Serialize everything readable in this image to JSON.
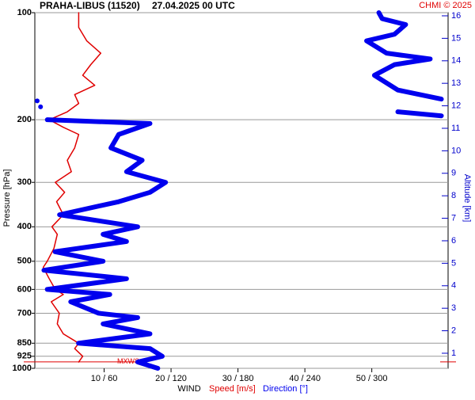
{
  "chart_data": {
    "type": "wind-profile",
    "title": "PRAHA-LIBUS (11520)",
    "subtitle": "27.04.2025 00 UTC",
    "credit": "CHMI © 2025",
    "ylabel": "Pressure [hPa]",
    "y2label": "Altitude [km]",
    "xlabel": "WIND",
    "y_log": true,
    "grid": true,
    "ylim": [
      1000,
      100
    ],
    "yticks": [
      100,
      200,
      300,
      400,
      500,
      600,
      700,
      850,
      925,
      1000
    ],
    "y2lim": [
      0.33,
      16.14
    ],
    "y2ticks": [
      1,
      2,
      3,
      4,
      5,
      6,
      7,
      8,
      9,
      10,
      11,
      12,
      13,
      14,
      15,
      16
    ],
    "xlim": [
      0,
      61.4
    ],
    "x2lim": [
      0,
      368
    ],
    "xticks": [
      {
        "value": 10,
        "label": "10 / 60"
      },
      {
        "value": 20,
        "label": "20 / 120"
      },
      {
        "value": 30,
        "label": "30 / 180"
      },
      {
        "value": 40,
        "label": "40 / 240"
      },
      {
        "value": 50,
        "label": "50 / 300"
      }
    ],
    "mxws": {
      "label": "MXWS",
      "pressure": 959,
      "color": "#e00000"
    },
    "series": [
      {
        "name": "Speed [m/s]",
        "color": "#e00000",
        "axis": "x",
        "pressure": [
          960,
          925,
          880,
          850,
          800,
          750,
          700,
          650,
          620,
          600,
          560,
          520,
          500,
          460,
          420,
          400,
          370,
          340,
          320,
          300,
          280,
          260,
          240,
          220,
          210,
          200,
          190,
          180,
          170,
          160,
          150,
          140,
          130,
          120,
          110,
          100
        ],
        "values": [
          6.2,
          6.8,
          5.6,
          6.2,
          3.9,
          3.0,
          3.3,
          2.1,
          3.9,
          2.7,
          1.8,
          0.9,
          1.5,
          2.5,
          3.0,
          2.2,
          3.9,
          2.9,
          4.1,
          2.7,
          5.1,
          4.5,
          5.6,
          6.2,
          3.9,
          1.8,
          4.5,
          6.2,
          5.6,
          8.6,
          6.8,
          8.0,
          9.5,
          7.4,
          6.2,
          6.2
        ]
      },
      {
        "name": "Direction [°]",
        "color": "#0000ee",
        "axis": "x2",
        "pressure": [
          1000,
          960,
          925,
          880,
          850,
          800,
          750,
          720,
          700,
          650,
          620,
          600,
          560,
          530,
          500,
          470,
          440,
          420,
          400,
          370,
          340,
          320,
          300,
          280,
          260,
          240,
          220,
          205,
          200,
          199,
          195,
          190,
          187,
          184,
          180,
          177,
          174,
          175,
          165,
          150,
          140,
          135,
          130,
          120,
          115,
          108,
          104,
          100
        ],
        "values": [
          108,
          90,
          112,
          101,
          37,
          101,
          59,
          90,
          55,
          30,
          65,
          9,
          80,
          6,
          59,
          16,
          80,
          59,
          90,
          20,
          73,
          101,
          115,
          80,
          94,
          66,
          73,
          101,
          9,
          null,
          362,
          323,
          null,
          3,
          null,
          0,
          null,
          362,
          323,
          302,
          320,
          352,
          313,
          295,
          320,
          330,
          309,
          306
        ]
      }
    ]
  }
}
